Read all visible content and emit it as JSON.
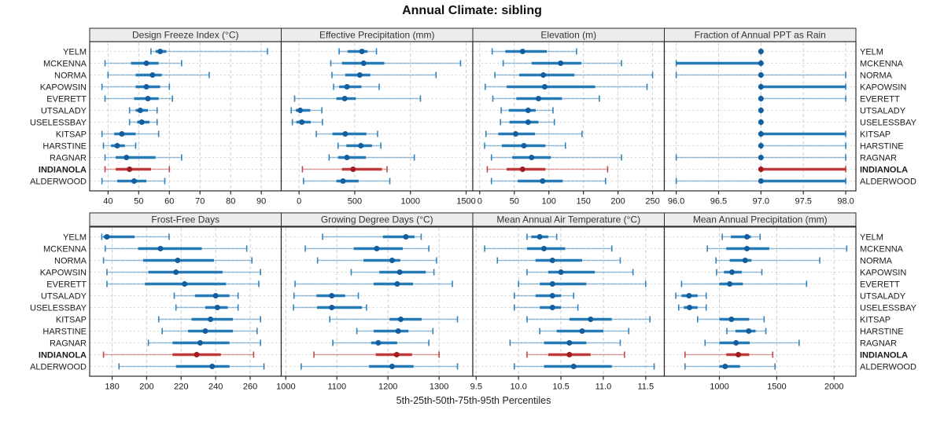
{
  "title": "Annual Climate: sibling",
  "caption": "5th-25th-50th-75th-95th Percentiles",
  "chart_data": {
    "type": "trellis-percentile-dotplot",
    "percentiles": [
      "5th",
      "25th",
      "50th",
      "75th",
      "95th"
    ],
    "stations": [
      "YELM",
      "MCKENNA",
      "NORMA",
      "KAPOWSIN",
      "EVERETT",
      "UTSALADY",
      "USELESSBAY",
      "KITSAP",
      "HARSTINE",
      "RAGNAR",
      "INDIANOLA",
      "ALDERWOOD"
    ],
    "highlight_station": "INDIANOLA",
    "legend_position": "none",
    "grid": true,
    "colors": {
      "series": "#1f77b4",
      "series_dot": "#135e9e",
      "highlight": "#bd3434",
      "highlight_dot": "#a11d20",
      "header_bg": "#ececec",
      "border": "#2a2a2a",
      "gridline": "#cfcfcf",
      "row_gridline": "#d6d6d6",
      "text": "#1a1a1a"
    },
    "panels": [
      {
        "title": "Design Freeze Index (°C)",
        "row": 0,
        "col": 0,
        "xlim": [
          34,
          96.5
        ],
        "ticks": [
          40,
          50,
          60,
          70,
          80,
          90
        ],
        "tick_decimals": 0,
        "values": {
          "YELM": [
            54,
            55.5,
            57,
            59,
            92
          ],
          "MCKENNA": [
            39,
            47.5,
            52.5,
            56.5,
            64
          ],
          "NORMA": [
            40,
            49,
            54.5,
            57.5,
            73
          ],
          "KAPOWSIN": [
            38,
            49,
            52.5,
            57,
            60
          ],
          "EVERETT": [
            39,
            48.5,
            53,
            56.5,
            61
          ],
          "UTSALADY": [
            47,
            49,
            50.5,
            53,
            56
          ],
          "USELESSBAY": [
            47,
            49.5,
            51,
            53.5,
            56
          ],
          "KITSAP": [
            38,
            42,
            44.5,
            49,
            56.5
          ],
          "HARSTINE": [
            38.5,
            41,
            43,
            45.5,
            49
          ],
          "RAGNAR": [
            39,
            42.5,
            46,
            55.5,
            64
          ],
          "INDIANOLA": [
            39,
            42.5,
            47,
            54,
            60
          ],
          "ALDERWOOD": [
            38,
            43,
            48.5,
            52.5,
            58.5
          ]
        }
      },
      {
        "title": "Effective Precipitation (mm)",
        "row": 0,
        "col": 1,
        "xlim": [
          -160,
          1560
        ],
        "ticks": [
          0,
          500,
          1000,
          1500
        ],
        "tick_decimals": 0,
        "values": {
          "YELM": [
            360,
            435,
            565,
            615,
            695
          ],
          "MCKENNA": [
            285,
            385,
            580,
            765,
            1450
          ],
          "NORMA": [
            295,
            415,
            545,
            640,
            1230
          ],
          "KAPOWSIN": [
            310,
            360,
            430,
            560,
            720
          ],
          "EVERETT": [
            -40,
            335,
            410,
            510,
            1090
          ],
          "UTSALADY": [
            -70,
            -30,
            10,
            100,
            205
          ],
          "USELESSBAY": [
            -60,
            -25,
            25,
            105,
            210
          ],
          "KITSAP": [
            155,
            300,
            415,
            605,
            705
          ],
          "HARSTINE": [
            350,
            425,
            555,
            655,
            735
          ],
          "RAGNAR": [
            270,
            350,
            430,
            600,
            1035
          ],
          "INDIANOLA": [
            30,
            385,
            485,
            745,
            790
          ],
          "ALDERWOOD": [
            40,
            335,
            395,
            535,
            815
          ]
        }
      },
      {
        "title": "Elevation (m)",
        "row": 0,
        "col": 2,
        "xlim": [
          -10,
          267
        ],
        "ticks": [
          0,
          50,
          100,
          150,
          200,
          250
        ],
        "tick_decimals": 0,
        "values": {
          "YELM": [
            18,
            37,
            62,
            97,
            140
          ],
          "MCKENNA": [
            34,
            75,
            117,
            147,
            205
          ],
          "NORMA": [
            22,
            57,
            92,
            137,
            250
          ],
          "KAPOWSIN": [
            8,
            39,
            94,
            167,
            242
          ],
          "EVERETT": [
            19,
            53,
            85,
            119,
            173
          ],
          "UTSALADY": [
            31,
            42,
            70,
            81,
            106
          ],
          "USELESSBAY": [
            30,
            43,
            70,
            85,
            108
          ],
          "KITSAP": [
            9,
            27,
            52,
            80,
            148
          ],
          "HARSTINE": [
            7,
            32,
            64,
            95,
            124
          ],
          "RAGNAR": [
            17,
            47,
            75,
            103,
            205
          ],
          "INDIANOLA": [
            11,
            39,
            62,
            95,
            185
          ],
          "ALDERWOOD": [
            17,
            55,
            91,
            120,
            182
          ]
        }
      },
      {
        "title": "Fraction of Annual PPT as Rain",
        "row": 0,
        "col": 3,
        "xlim": [
          95.86,
          98.12
        ],
        "ticks": [
          96.0,
          96.5,
          97.0,
          97.5,
          98.0
        ],
        "tick_decimals": 1,
        "values": {
          "YELM": [
            97,
            97,
            97,
            97,
            97
          ],
          "MCKENNA": [
            96,
            96,
            97,
            97,
            97
          ],
          "NORMA": [
            96,
            97,
            97,
            97,
            98
          ],
          "KAPOWSIN": [
            97,
            97,
            97,
            98,
            98
          ],
          "EVERETT": [
            97,
            97,
            97,
            97,
            98
          ],
          "UTSALADY": [
            97,
            97,
            97,
            97,
            97
          ],
          "USELESSBAY": [
            97,
            97,
            97,
            97,
            97
          ],
          "KITSAP": [
            97,
            97,
            97,
            98,
            98
          ],
          "HARSTINE": [
            97,
            97,
            97,
            97,
            98
          ],
          "RAGNAR": [
            96,
            97,
            97,
            97,
            98
          ],
          "INDIANOLA": [
            97,
            97,
            97,
            98,
            98
          ],
          "ALDERWOOD": [
            96,
            97,
            97,
            98,
            98
          ]
        }
      },
      {
        "title": "Frost-Free Days",
        "row": 1,
        "col": 0,
        "xlim": [
          167,
          278
        ],
        "ticks": [
          180,
          200,
          220,
          240,
          260
        ],
        "tick_decimals": 0,
        "values": {
          "YELM": [
            174,
            175,
            177,
            193,
            213
          ],
          "MCKENNA": [
            176,
            195,
            208,
            232,
            258
          ],
          "NORMA": [
            175,
            198,
            218,
            239,
            261
          ],
          "KAPOWSIN": [
            177,
            201,
            217,
            244,
            266
          ],
          "EVERETT": [
            177,
            199,
            222,
            246,
            265
          ],
          "UTSALADY": [
            216,
            228,
            240,
            248,
            253
          ],
          "USELESSBAY": [
            217,
            234,
            241,
            247,
            253
          ],
          "KITSAP": [
            207,
            226,
            237,
            250,
            266
          ],
          "HARSTINE": [
            209,
            224,
            234,
            250,
            264
          ],
          "RAGNAR": [
            201,
            215,
            231,
            248,
            266
          ],
          "INDIANOLA": [
            175,
            215,
            229,
            243,
            262
          ],
          "ALDERWOOD": [
            184,
            217,
            238,
            248,
            268
          ]
        }
      },
      {
        "title": "Growing Degree Days (°C)",
        "row": 1,
        "col": 1,
        "xlim": [
          991,
          1366
        ],
        "ticks": [
          1000,
          1100,
          1200,
          1300
        ],
        "tick_decimals": 0,
        "values": {
          "YELM": [
            1072,
            1190,
            1235,
            1252,
            1265
          ],
          "MCKENNA": [
            1038,
            1133,
            1178,
            1229,
            1280
          ],
          "NORMA": [
            1062,
            1152,
            1208,
            1224,
            1295
          ],
          "KAPOWSIN": [
            1128,
            1183,
            1223,
            1274,
            1290
          ],
          "EVERETT": [
            1018,
            1172,
            1218,
            1249,
            1326
          ],
          "UTSALADY": [
            1016,
            1060,
            1090,
            1116,
            1142
          ],
          "USELESSBAY": [
            1015,
            1061,
            1090,
            1149,
            1158
          ],
          "KITSAP": [
            1086,
            1203,
            1225,
            1266,
            1336
          ],
          "HARSTINE": [
            1139,
            1172,
            1220,
            1240,
            1288
          ],
          "RAGNAR": [
            1092,
            1167,
            1181,
            1218,
            1280
          ],
          "INDIANOLA": [
            1055,
            1176,
            1217,
            1247,
            1300
          ],
          "ALDERWOOD": [
            1030,
            1163,
            1208,
            1250,
            1336
          ]
        }
      },
      {
        "title": "Mean Annual Air Temperature (°C)",
        "row": 1,
        "col": 2,
        "xlim": [
          9.46,
          11.72
        ],
        "ticks": [
          9.5,
          10.0,
          10.5,
          11.0,
          11.5
        ],
        "tick_decimals": 1,
        "values": {
          "YELM": [
            10.1,
            10.15,
            10.25,
            10.35,
            10.45
          ],
          "MCKENNA": [
            9.6,
            10.1,
            10.3,
            10.55,
            11.1
          ],
          "NORMA": [
            9.75,
            10.2,
            10.4,
            10.75,
            11.2
          ],
          "KAPOWSIN": [
            10.1,
            10.35,
            10.5,
            10.9,
            11.35
          ],
          "EVERETT": [
            10.0,
            10.25,
            10.4,
            10.8,
            11.5
          ],
          "UTSALADY": [
            9.95,
            10.2,
            10.4,
            10.5,
            10.65
          ],
          "USELESSBAY": [
            9.95,
            10.25,
            10.4,
            10.5,
            10.7
          ],
          "KITSAP": [
            10.1,
            10.6,
            10.85,
            11.1,
            11.55
          ],
          "HARSTINE": [
            10.25,
            10.45,
            10.75,
            11.0,
            11.3
          ],
          "RAGNAR": [
            9.9,
            10.3,
            10.6,
            10.8,
            11.2
          ],
          "INDIANOLA": [
            10.1,
            10.35,
            10.6,
            10.85,
            11.25
          ],
          "ALDERWOOD": [
            9.95,
            10.3,
            10.65,
            11.1,
            11.6
          ]
        }
      },
      {
        "title": "Mean Annual Precipitation (mm)",
        "row": 1,
        "col": 3,
        "xlim": [
          520,
          2190
        ],
        "ticks": [
          1000,
          1500,
          2000
        ],
        "tick_decimals": 0,
        "values": {
          "YELM": [
            1025,
            1100,
            1240,
            1275,
            1355
          ],
          "MCKENNA": [
            895,
            1060,
            1240,
            1435,
            2110
          ],
          "NORMA": [
            970,
            1090,
            1225,
            1280,
            1875
          ],
          "KAPOWSIN": [
            975,
            1040,
            1110,
            1195,
            1370
          ],
          "EVERETT": [
            670,
            1000,
            1090,
            1205,
            1760
          ],
          "UTSALADY": [
            620,
            670,
            735,
            810,
            885
          ],
          "USELESSBAY": [
            645,
            690,
            740,
            810,
            885
          ],
          "KITSAP": [
            810,
            1000,
            1105,
            1260,
            1390
          ],
          "HARSTINE": [
            1065,
            1140,
            1255,
            1315,
            1405
          ],
          "RAGNAR": [
            875,
            1000,
            1145,
            1265,
            1695
          ],
          "INDIANOLA": [
            700,
            1060,
            1165,
            1260,
            1465
          ],
          "ALDERWOOD": [
            700,
            1000,
            1050,
            1180,
            1485
          ]
        }
      }
    ]
  }
}
